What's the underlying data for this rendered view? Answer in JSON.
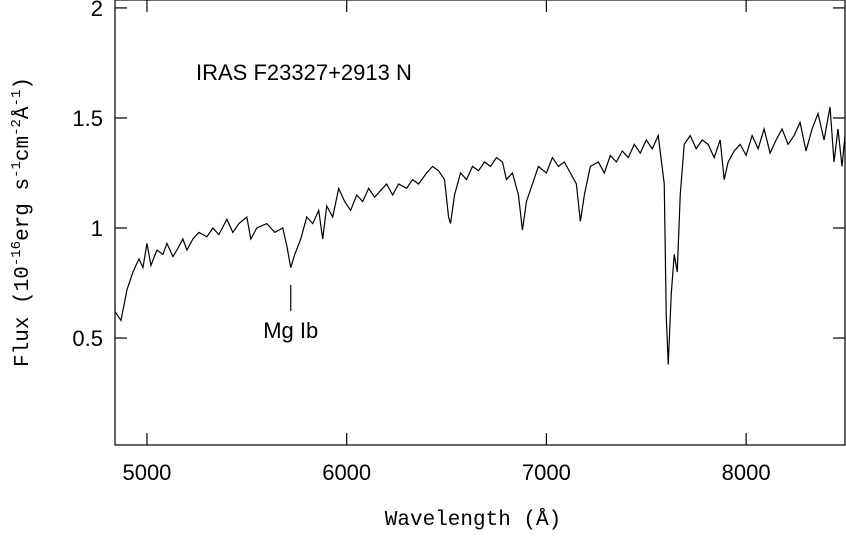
{
  "chart_data": {
    "type": "line",
    "xlabel": "Wavelength (Å)",
    "ylabel": [
      "Flux (10",
      "-16",
      "erg s",
      "-1",
      "cm",
      "-2",
      "Å",
      "-1",
      ")"
    ],
    "annotations": [
      {
        "text": "IRAS F23327+2913 N"
      },
      {
        "text": "Mg Ib",
        "x": 5720
      }
    ],
    "xlim": [
      4840,
      8495
    ],
    "ylim": [
      0.014,
      2.036
    ],
    "xticks": [
      5000,
      6000,
      7000,
      8000
    ],
    "yticks": [
      0.5,
      1,
      1.5,
      2
    ],
    "color": "#000000",
    "x": [
      4840,
      4870,
      4900,
      4930,
      4960,
      4980,
      5000,
      5020,
      5050,
      5080,
      5100,
      5130,
      5150,
      5180,
      5200,
      5230,
      5260,
      5300,
      5330,
      5360,
      5400,
      5430,
      5460,
      5500,
      5520,
      5550,
      5600,
      5640,
      5680,
      5700,
      5720,
      5740,
      5770,
      5800,
      5830,
      5860,
      5880,
      5900,
      5930,
      5960,
      5990,
      6020,
      6050,
      6080,
      6110,
      6140,
      6170,
      6200,
      6230,
      6260,
      6300,
      6330,
      6360,
      6400,
      6430,
      6460,
      6490,
      6510,
      6520,
      6540,
      6570,
      6600,
      6630,
      6660,
      6690,
      6720,
      6750,
      6780,
      6800,
      6830,
      6860,
      6880,
      6900,
      6930,
      6960,
      7000,
      7030,
      7060,
      7090,
      7120,
      7150,
      7170,
      7190,
      7220,
      7260,
      7290,
      7320,
      7350,
      7380,
      7410,
      7440,
      7470,
      7500,
      7530,
      7560,
      7590,
      7600,
      7610,
      7625,
      7640,
      7655,
      7670,
      7690,
      7720,
      7750,
      7780,
      7810,
      7840,
      7870,
      7890,
      7910,
      7940,
      7970,
      8000,
      8030,
      8060,
      8090,
      8120,
      8150,
      8180,
      8210,
      8240,
      8270,
      8300,
      8330,
      8360,
      8390,
      8420,
      8440,
      8460,
      8480,
      8495
    ],
    "values": [
      0.62,
      0.58,
      0.72,
      0.8,
      0.86,
      0.82,
      0.93,
      0.83,
      0.9,
      0.88,
      0.93,
      0.87,
      0.9,
      0.95,
      0.9,
      0.95,
      0.98,
      0.96,
      1.0,
      0.97,
      1.04,
      0.98,
      1.02,
      1.05,
      0.95,
      1.0,
      1.02,
      0.98,
      1.0,
      0.92,
      0.82,
      0.88,
      0.95,
      1.05,
      1.02,
      1.08,
      0.95,
      1.1,
      1.05,
      1.18,
      1.12,
      1.08,
      1.15,
      1.12,
      1.18,
      1.14,
      1.17,
      1.2,
      1.15,
      1.2,
      1.18,
      1.22,
      1.2,
      1.25,
      1.28,
      1.26,
      1.22,
      1.05,
      1.02,
      1.15,
      1.25,
      1.22,
      1.28,
      1.26,
      1.3,
      1.28,
      1.32,
      1.3,
      1.22,
      1.25,
      1.15,
      0.99,
      1.12,
      1.2,
      1.28,
      1.25,
      1.32,
      1.28,
      1.3,
      1.25,
      1.2,
      1.03,
      1.15,
      1.28,
      1.3,
      1.25,
      1.33,
      1.3,
      1.35,
      1.32,
      1.38,
      1.34,
      1.4,
      1.36,
      1.42,
      1.2,
      0.6,
      0.38,
      0.7,
      0.88,
      0.8,
      1.15,
      1.38,
      1.42,
      1.36,
      1.4,
      1.38,
      1.32,
      1.4,
      1.22,
      1.3,
      1.35,
      1.38,
      1.33,
      1.42,
      1.36,
      1.45,
      1.34,
      1.4,
      1.45,
      1.38,
      1.42,
      1.48,
      1.35,
      1.45,
      1.52,
      1.4,
      1.55,
      1.3,
      1.45,
      1.28,
      1.42
    ]
  }
}
